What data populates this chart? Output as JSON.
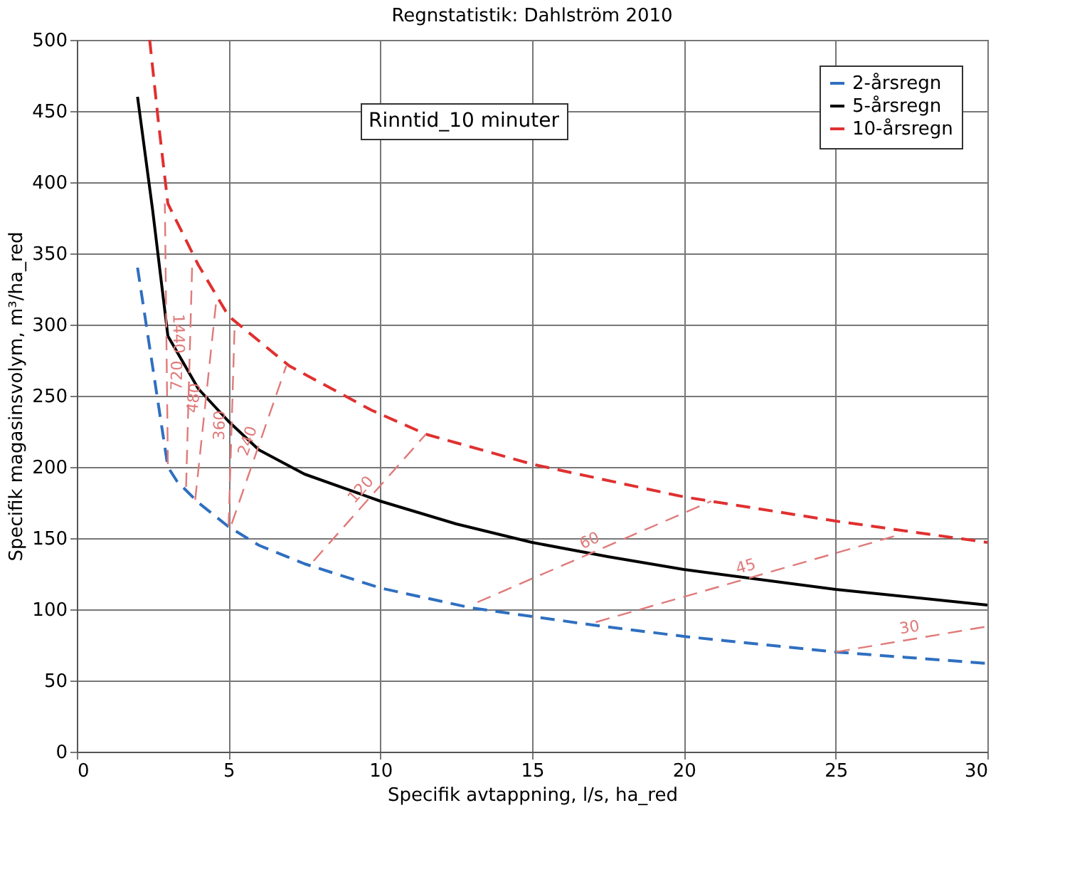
{
  "chart_data": {
    "type": "line",
    "title": "Regnstatistik: Dahlström 2010",
    "xlabel": "Specifik avtappning, l/s, ha_red",
    "ylabel": "Specifik magasinsvolym, m³/ha_red",
    "xlim": [
      0,
      30
    ],
    "xticks": [
      0,
      5,
      10,
      15,
      20,
      25,
      30
    ],
    "ylim": [
      0,
      500
    ],
    "yticks": [
      0,
      50,
      100,
      150,
      200,
      250,
      300,
      350,
      400,
      450,
      500
    ],
    "grid": true,
    "legend": "top right",
    "marker": "none",
    "annotations": [
      "Rinntid_10 minuter"
    ],
    "series": [
      {
        "name": "2-årsregn",
        "color": "#2f6fc0",
        "line_style": "dashed",
        "x": [
          2,
          2.5,
          3,
          3.3,
          4,
          5,
          6,
          7.5,
          10,
          13,
          15,
          17,
          20,
          25,
          30
        ],
        "values": [
          340,
          270,
          200,
          190,
          175,
          158,
          145,
          132,
          115,
          101,
          95,
          89,
          81,
          70,
          62
        ]
      },
      {
        "name": "5-årsregn",
        "color": "#000000",
        "line_style": "solid",
        "x": [
          2,
          2.5,
          3,
          4,
          5,
          6,
          7.5,
          10,
          12.5,
          15,
          17.5,
          20,
          25,
          30
        ],
        "values": [
          460,
          380,
          292,
          255,
          232,
          212,
          195,
          176,
          160,
          147,
          137,
          128,
          114,
          103
        ]
      },
      {
        "name": "10-årsregn",
        "color": "#e03030",
        "line_style": "dashed",
        "x": [
          2.4,
          2.7,
          3,
          4,
          5,
          7,
          9.7,
          11.5,
          15,
          20,
          25,
          30
        ],
        "values": [
          500,
          440,
          385,
          342,
          306,
          271,
          240,
          223,
          202,
          179,
          162,
          147
        ]
      },
      {
        "name": "1440",
        "color": "#e07a7a",
        "line_style": "dashed",
        "x": [
          3,
          2.9
        ],
        "values": [
          202,
          385
        ]
      },
      {
        "name": "720",
        "color": "#e07a7a",
        "line_style": "dashed",
        "x": [
          3.6,
          3.8
        ],
        "values": [
          186,
          342
        ]
      },
      {
        "name": "480",
        "color": "#e07a7a",
        "line_style": "dashed",
        "x": [
          3.9,
          4.6
        ],
        "values": [
          177,
          318
        ]
      },
      {
        "name": "360",
        "color": "#e07a7a",
        "line_style": "dashed",
        "x": [
          5,
          5.2
        ],
        "values": [
          158,
          300
        ]
      },
      {
        "name": "240",
        "color": "#e07a7a",
        "line_style": "dashed",
        "x": [
          5.1,
          6.9
        ],
        "values": [
          160,
          271
        ]
      },
      {
        "name": "120",
        "color": "#e07a7a",
        "line_style": "dashed",
        "x": [
          7.8,
          11.5
        ],
        "values": [
          134,
          223
        ]
      },
      {
        "name": "60",
        "color": "#e07a7a",
        "line_style": "dashed",
        "x": [
          13.2,
          20.9
        ],
        "values": [
          105,
          176
        ]
      },
      {
        "name": "45",
        "color": "#e07a7a",
        "line_style": "dashed",
        "x": [
          17.1,
          27.2
        ],
        "values": [
          91,
          153
        ]
      },
      {
        "name": "30",
        "color": "#e07a7a",
        "line_style": "dashed",
        "x": [
          25,
          30
        ],
        "values": [
          70,
          88
        ]
      }
    ]
  }
}
